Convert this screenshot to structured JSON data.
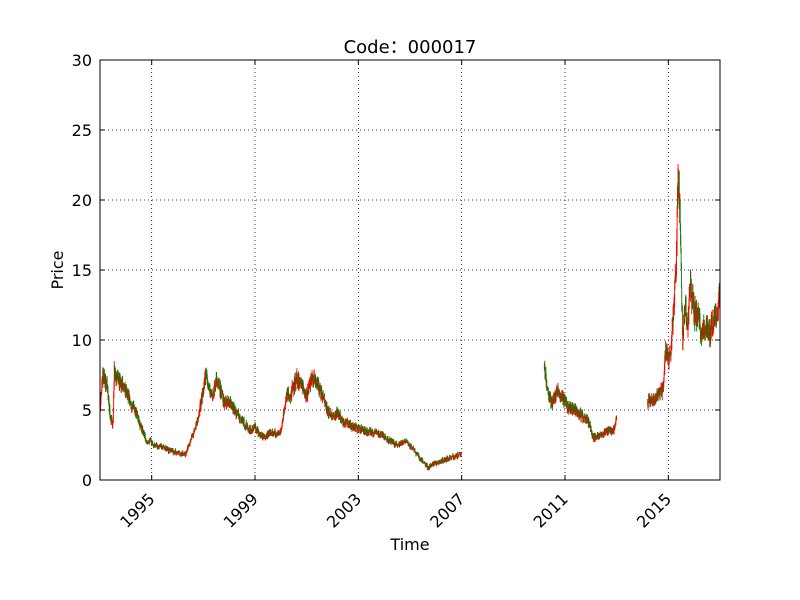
{
  "chart_data": {
    "type": "candlestick",
    "title": "Code：000017",
    "xlabel": "Time",
    "ylabel": "Price",
    "xlim": [
      1993.0,
      2017.0
    ],
    "ylim": [
      0,
      30
    ],
    "xticks": [
      1995,
      1999,
      2003,
      2007,
      2011,
      2015
    ],
    "yticks": [
      0,
      5,
      10,
      15,
      20,
      25,
      30
    ],
    "grid": true,
    "colors": {
      "up": "#ff0000",
      "down": "#008000"
    },
    "series": [
      {
        "segments": [
          {
            "x": [
              1993.0,
              1993.1,
              1993.25,
              1993.4,
              1993.5,
              1993.55,
              1993.7,
              1993.85,
              1994.0,
              1994.2,
              1994.35,
              1994.5,
              1994.65,
              1994.8,
              1994.95,
              1995.1,
              1995.3,
              1995.5,
              1995.7,
              1995.9,
              1996.1,
              1996.3,
              1996.5,
              1996.65,
              1996.8,
              1996.95,
              1997.1,
              1997.2,
              1997.35,
              1997.5,
              1997.65,
              1997.8,
              1998.0,
              1998.2,
              1998.4,
              1998.6,
              1998.8,
              1999.0,
              1999.2,
              1999.4,
              1999.6,
              1999.8,
              2000.0,
              2000.2,
              2000.4,
              2000.6,
              2000.8,
              2001.0,
              2001.2,
              2001.4,
              2001.6,
              2001.8,
              2002.0,
              2002.2,
              2002.4,
              2002.6,
              2002.8,
              2003.0,
              2003.3,
              2003.6,
              2003.9,
              2004.2,
              2004.5,
              2004.8,
              2005.1,
              2005.4,
              2005.7,
              2006.0,
              2006.3,
              2006.6,
              2006.9,
              2007.0
            ],
            "y": [
              5.0,
              7.5,
              7.0,
              4.5,
              4.0,
              7.8,
              7.2,
              6.8,
              6.5,
              5.5,
              5.0,
              4.2,
              3.5,
              2.8,
              2.8,
              2.5,
              2.4,
              2.3,
              2.1,
              2.0,
              1.9,
              1.8,
              2.8,
              3.5,
              4.5,
              6.0,
              7.5,
              6.5,
              6.0,
              7.2,
              6.5,
              5.5,
              5.5,
              5.0,
              4.5,
              4.0,
              3.5,
              3.8,
              3.2,
              3.0,
              3.5,
              3.3,
              3.4,
              6.0,
              6.2,
              7.3,
              6.8,
              6.0,
              7.5,
              7.0,
              6.0,
              5.0,
              4.5,
              4.8,
              4.2,
              4.0,
              3.8,
              3.7,
              3.5,
              3.4,
              3.2,
              2.8,
              2.5,
              2.8,
              2.3,
              1.5,
              0.9,
              1.2,
              1.4,
              1.6,
              1.8,
              1.8
            ]
          },
          {
            "x": [
              2010.2,
              2010.35,
              2010.5,
              2010.7,
              2010.9,
              2011.1,
              2011.3,
              2011.5,
              2011.7,
              2011.9,
              2012.1,
              2012.3,
              2012.5,
              2012.7,
              2012.9,
              2013.0
            ],
            "y": [
              8.0,
              6.0,
              5.5,
              6.5,
              5.8,
              5.2,
              5.0,
              4.8,
              4.5,
              4.2,
              3.0,
              3.2,
              3.4,
              3.5,
              3.6,
              4.5
            ]
          },
          {
            "x": [
              2014.2,
              2014.4,
              2014.6,
              2014.8,
              2014.9,
              2015.0,
              2015.1,
              2015.2,
              2015.3,
              2015.38,
              2015.45,
              2015.55,
              2015.65,
              2015.75,
              2015.85,
              2016.0,
              2016.15,
              2016.3,
              2016.45,
              2016.6,
              2016.75,
              2016.9,
              2017.0
            ],
            "y": [
              5.5,
              5.8,
              6.0,
              6.5,
              9.5,
              8.5,
              9.0,
              12.5,
              15.5,
              22.0,
              20.0,
              10.0,
              12.5,
              11.0,
              14.0,
              12.0,
              11.5,
              10.5,
              11.0,
              10.5,
              11.5,
              12.0,
              13.5
            ]
          }
        ]
      }
    ]
  }
}
